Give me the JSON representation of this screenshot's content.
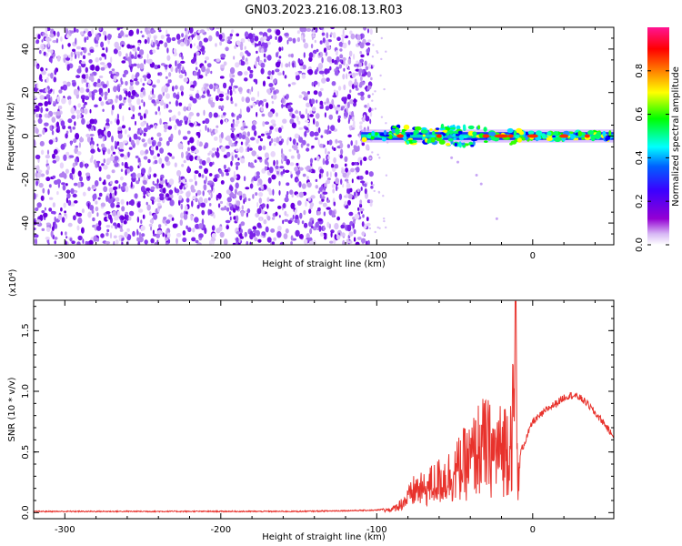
{
  "title": "GN03.2023.216.08.13.R03",
  "colors": {
    "snr_line": "#e8322c",
    "spectrogram_scatter": "#8a2be2",
    "colorbar": [
      "#9400d3",
      "#4b00ff",
      "#0000ff",
      "#00ffff",
      "#00ff00",
      "#ffff00",
      "#ff8000",
      "#ff0000",
      "#ff1493"
    ]
  },
  "chart_data": [
    {
      "type": "heatmap",
      "xlabel": "Height of straight line (km)",
      "ylabel": "Frequency (Hz)",
      "xlim": [
        -320,
        52
      ],
      "ylim": [
        -50,
        50
      ],
      "x_ticks": [
        -300,
        -200,
        -100,
        0
      ],
      "y_ticks": [
        -40,
        -20,
        0,
        20,
        40
      ],
      "colorbar": {
        "label": "Normalized spectral amplitude",
        "range": [
          0.0,
          1.0
        ],
        "ticks": [
          "0.0",
          "0.2",
          "0.4",
          "0.6",
          "0.8"
        ],
        "tick_values": [
          0.0,
          0.2,
          0.4,
          0.6,
          0.8
        ]
      },
      "regions": [
        {
          "x_range": [
            -320,
            -103
          ],
          "frequency_range": [
            -50,
            50
          ],
          "amplitude": "low (0.0-0.15), broadband noise"
        },
        {
          "x_range": [
            -110,
            52
          ],
          "frequency_range": [
            -5,
            5
          ],
          "amplitude": "up to ~1.0, concentrated near 0 Hz"
        }
      ],
      "grid": false
    },
    {
      "type": "line",
      "xlabel": "Height of straight line (km)",
      "ylabel": "SNR (10 * v/v)",
      "y_multiplier_label": "(x10⁴)",
      "xlim": [
        -320,
        52
      ],
      "ylim": [
        -0.05,
        1.75
      ],
      "x_ticks": [
        -300,
        -200,
        -100,
        0
      ],
      "y_ticks": [
        0.0,
        0.5,
        1.0,
        1.5
      ],
      "y_tick_labels": [
        "0.0",
        "0.5",
        "1.0",
        "1.5"
      ],
      "series": [
        {
          "x": [
            -320,
            -250,
            -200,
            -150,
            -100,
            -90,
            -85,
            -80,
            -75,
            -70,
            -65,
            -60,
            -55,
            -50,
            -45,
            -40,
            -35,
            -30,
            -25,
            -20,
            -15,
            -12,
            -11,
            -10,
            -9,
            -8,
            -6,
            -3,
            0,
            5,
            10,
            15,
            20,
            25,
            30,
            35,
            40,
            45,
            52
          ],
          "y": [
            0.01,
            0.01,
            0.01,
            0.01,
            0.02,
            0.04,
            0.1,
            0.18,
            0.3,
            0.28,
            0.35,
            0.4,
            0.45,
            0.5,
            0.6,
            0.65,
            0.8,
            0.85,
            0.75,
            0.8,
            0.9,
            1.2,
            1.74,
            1.0,
            0.3,
            0.5,
            0.55,
            0.65,
            0.75,
            0.8,
            0.86,
            0.9,
            0.95,
            0.97,
            0.95,
            0.9,
            0.82,
            0.75,
            0.62
          ]
        }
      ],
      "grid": false
    }
  ]
}
